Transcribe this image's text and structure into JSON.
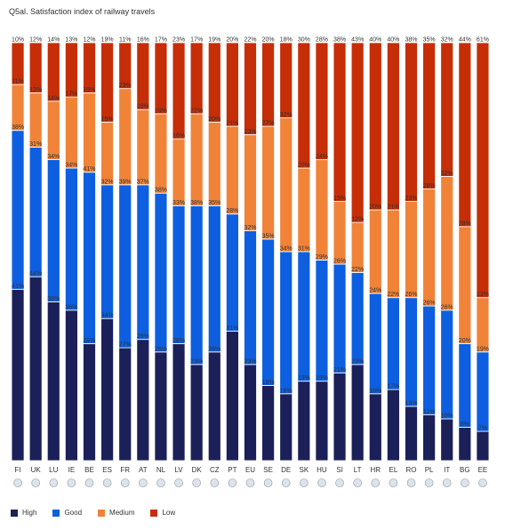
{
  "title": "Q5al. Satisfaction index of railway travels",
  "chart_data": {
    "type": "bar",
    "stacked": true,
    "percent": true,
    "categories": [
      "FI",
      "UK",
      "LU",
      "IE",
      "BE",
      "ES",
      "FR",
      "AT",
      "NL",
      "LV",
      "DK",
      "CZ",
      "PT",
      "EU",
      "SE",
      "DE",
      "SK",
      "HU",
      "SI",
      "LT",
      "HR",
      "EL",
      "RO",
      "PL",
      "IT",
      "BG",
      "EE"
    ],
    "series": [
      {
        "name": "High",
        "color": "#1b2059",
        "values": [
          41,
          44,
          38,
          36,
          28,
          34,
          27,
          29,
          26,
          28,
          23,
          26,
          31,
          23,
          18,
          16,
          19,
          19,
          21,
          23,
          16,
          17,
          13,
          11,
          10,
          8,
          7
        ]
      },
      {
        "name": "Good",
        "color": "#0d5fe0",
        "values": [
          38,
          31,
          34,
          34,
          41,
          32,
          39,
          37,
          38,
          33,
          38,
          35,
          28,
          32,
          35,
          34,
          31,
          29,
          26,
          22,
          24,
          22,
          26,
          26,
          26,
          20,
          19
        ]
      },
      {
        "name": "Medium",
        "color": "#f08338",
        "values": [
          11,
          13,
          14,
          17,
          19,
          15,
          23,
          18,
          19,
          16,
          22,
          20,
          21,
          23,
          27,
          32,
          20,
          24,
          15,
          12,
          20,
          21,
          23,
          28,
          32,
          28,
          13
        ]
      },
      {
        "name": "Low",
        "color": "#c52e07",
        "values": [
          10,
          12,
          14,
          13,
          12,
          19,
          11,
          16,
          17,
          23,
          17,
          19,
          20,
          22,
          20,
          18,
          30,
          28,
          38,
          43,
          40,
          40,
          38,
          35,
          32,
          44,
          61
        ]
      }
    ],
    "legend_position": "bottom-left",
    "grid": false
  },
  "flags": [
    "flag-fi",
    "flag-uk",
    "flag-lu",
    "flag-ie",
    "flag-be",
    "flag-es",
    "flag-fr",
    "flag-at",
    "flag-nl",
    "flag-lv",
    "flag-dk",
    "flag-cz",
    "flag-pt",
    "flag-eu",
    "flag-se",
    "flag-de",
    "flag-sk",
    "flag-hu",
    "flag-si",
    "flag-lt",
    "flag-hr",
    "flag-el",
    "flag-ro",
    "flag-pl",
    "flag-it",
    "flag-bg",
    "flag-ee"
  ]
}
